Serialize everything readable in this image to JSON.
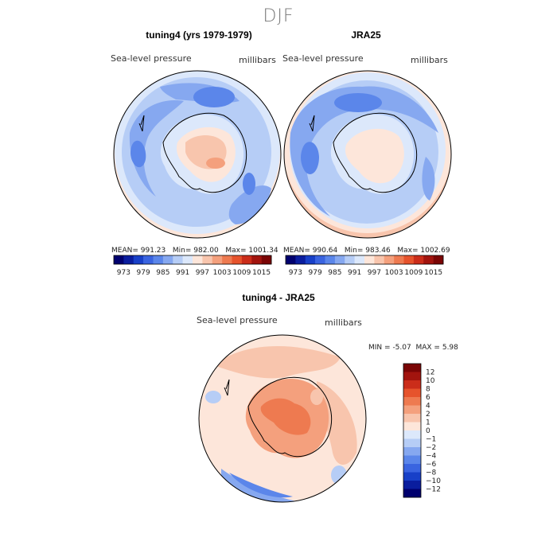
{
  "title": "DJF",
  "panels": [
    {
      "title": "tuning4 (yrs 1979-1979)",
      "left_label": "Sea-level pressure",
      "right_label": "millibars",
      "stats": {
        "mean_label": "MEAN=",
        "mean": "991.23",
        "min_label": "Min=",
        "min": "982.00",
        "max_label": "Max=",
        "max": "1001.34"
      }
    },
    {
      "title": "JRA25",
      "left_label": "Sea-level pressure",
      "right_label": "millibars",
      "stats": {
        "mean_label": "MEAN=",
        "mean": "990.64",
        "min_label": "Min=",
        "min": "983.46",
        "max_label": "Max=",
        "max": "1002.69"
      }
    },
    {
      "title": "tuning4 - JRA25",
      "left_label": "Sea-level pressure",
      "right_label": "millibars",
      "stats": {
        "min_label": "MIN =",
        "min": "-5.07",
        "max_label": "MAX =",
        "max": "5.98"
      }
    }
  ],
  "chart_data": [
    {
      "type": "heatmap",
      "title": "tuning4 (yrs 1979-1979)",
      "variable": "Sea-level pressure",
      "units": "millibars",
      "projection": "south polar stereographic",
      "mean": 991.23,
      "min": 982.0,
      "max": 1001.34,
      "colorbar": {
        "levels": [
          973,
          976,
          979,
          982,
          985,
          988,
          991,
          994,
          997,
          1000,
          1003,
          1006,
          1009,
          1012,
          1015
        ],
        "tick_labels": [
          "973",
          "979",
          "985",
          "991",
          "997",
          "1003",
          "1009",
          "1015"
        ]
      }
    },
    {
      "type": "heatmap",
      "title": "JRA25",
      "variable": "Sea-level pressure",
      "units": "millibars",
      "projection": "south polar stereographic",
      "mean": 990.64,
      "min": 983.46,
      "max": 1002.69,
      "colorbar": {
        "levels": [
          973,
          976,
          979,
          982,
          985,
          988,
          991,
          994,
          997,
          1000,
          1003,
          1006,
          1009,
          1012,
          1015
        ],
        "tick_labels": [
          "973",
          "979",
          "985",
          "991",
          "997",
          "1003",
          "1009",
          "1015"
        ]
      }
    },
    {
      "type": "heatmap",
      "title": "tuning4 - JRA25",
      "variable": "Sea-level pressure",
      "units": "millibars",
      "projection": "south polar stereographic",
      "min": -5.07,
      "max": 5.98,
      "colorbar": {
        "levels": [
          -12,
          -10,
          -8,
          -6,
          -4,
          -2,
          -1,
          0,
          1,
          2,
          4,
          6,
          8,
          10,
          12
        ],
        "tick_labels": [
          "12",
          "10",
          "8",
          "6",
          "4",
          "2",
          "1",
          "0",
          "−1",
          "−2",
          "−4",
          "−6",
          "−8",
          "−10",
          "−12"
        ]
      }
    }
  ],
  "palettes": {
    "abs": [
      "#00006e",
      "#0a1d9e",
      "#1840c8",
      "#3a64e0",
      "#5b86ea",
      "#86a8f0",
      "#b6cdf6",
      "#dce8fb",
      "#fde6da",
      "#f8c5ad",
      "#f4a07d",
      "#ee7a50",
      "#e6532c",
      "#cb2d1a",
      "#a2140e",
      "#7a0505"
    ],
    "diff": [
      "#7a0505",
      "#a2140e",
      "#cb2d1a",
      "#e6532c",
      "#ee7a50",
      "#f4a07d",
      "#f8c5ad",
      "#fde6da",
      "#dce8fb",
      "#b6cdf6",
      "#86a8f0",
      "#5b86ea",
      "#3a64e0",
      "#1840c8",
      "#0a1d9e",
      "#00006e"
    ]
  }
}
